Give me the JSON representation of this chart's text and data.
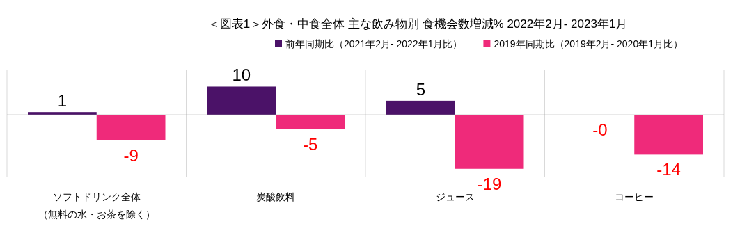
{
  "chart_data": {
    "type": "bar",
    "title": "＜図表1＞外食・中食全体 主な飲み物別 食機会数増減% 2022年2月- 2023年1月",
    "categories": [
      "ソフトドリンク全体（無料の水・お茶を除く）",
      "炭酸飲料",
      "ジュース",
      "コーヒー"
    ],
    "series": [
      {
        "name": "前年同期比（2021年2月- 2022年1月比）",
        "color": "#4b1268",
        "values": [
          1,
          10,
          5,
          0
        ],
        "value_labels": [
          "1",
          "10",
          "5",
          "-0"
        ]
      },
      {
        "name": "2019年同期比（2019年2月- 2020年1月比）",
        "color": "#ef2a7a",
        "values": [
          -9,
          -5,
          -19,
          -14
        ],
        "value_labels": [
          "-9",
          "-5",
          "-19",
          "-14"
        ]
      }
    ],
    "ylim": [
      -22,
      16
    ],
    "grid": "x",
    "legend": "top right"
  }
}
